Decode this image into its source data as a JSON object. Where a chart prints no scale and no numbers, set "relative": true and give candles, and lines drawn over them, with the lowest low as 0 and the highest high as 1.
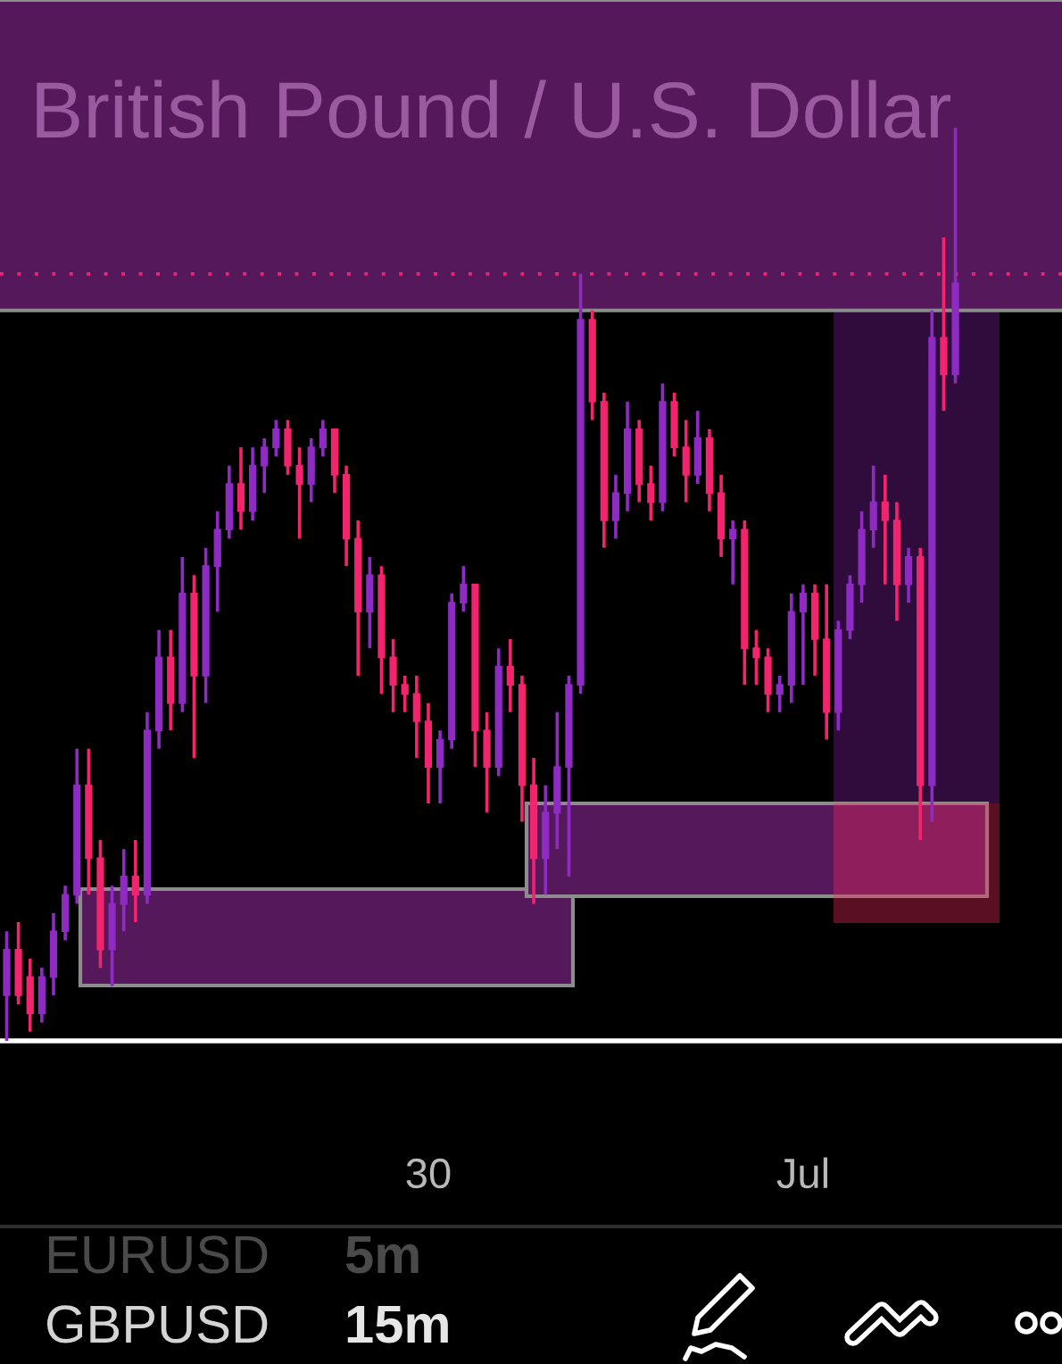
{
  "chart_data": {
    "type": "candlestick",
    "title": "British Pound / U.S. Dollar",
    "relative": true,
    "categories": [
      null,
      null,
      null,
      null,
      null,
      null,
      null,
      null,
      null,
      null,
      null,
      null,
      null,
      null,
      null,
      null,
      null,
      null,
      null,
      null,
      null,
      null,
      null,
      null,
      null,
      null,
      null,
      null,
      null,
      null,
      null,
      null,
      null,
      null,
      null,
      null,
      "30",
      null,
      null,
      null,
      null,
      null,
      null,
      null,
      null,
      null,
      null,
      null,
      null,
      null,
      null,
      null,
      null,
      null,
      null,
      null,
      null,
      null,
      null,
      null,
      null,
      null,
      null,
      null,
      null,
      null,
      null,
      null,
      "Jul",
      null,
      null,
      null,
      null,
      null,
      null,
      null,
      null,
      null,
      null,
      null,
      null,
      null
    ],
    "ohlc": [
      [
        0.05,
        0.12,
        0,
        0.1
      ],
      [
        0.1,
        0.13,
        0.04,
        0.05
      ],
      [
        0.07,
        0.09,
        0.01,
        0.03
      ],
      [
        0.03,
        0.08,
        0.02,
        0.07
      ],
      [
        0.07,
        0.14,
        0.05,
        0.12
      ],
      [
        0.12,
        0.17,
        0.11,
        0.16
      ],
      [
        0.16,
        0.32,
        0.15,
        0.28
      ],
      [
        0.28,
        0.32,
        0.16,
        0.2
      ],
      [
        0.2,
        0.22,
        0.08,
        0.1
      ],
      [
        0.1,
        0.17,
        0.06,
        0.15
      ],
      [
        0.15,
        0.21,
        0.12,
        0.18
      ],
      [
        0.18,
        0.22,
        0.13,
        0.16
      ],
      [
        0.16,
        0.36,
        0.15,
        0.34
      ],
      [
        0.34,
        0.45,
        0.32,
        0.42
      ],
      [
        0.42,
        0.45,
        0.34,
        0.37
      ],
      [
        0.37,
        0.53,
        0.36,
        0.49
      ],
      [
        0.49,
        0.51,
        0.31,
        0.4
      ],
      [
        0.4,
        0.54,
        0.37,
        0.52
      ],
      [
        0.52,
        0.58,
        0.47,
        0.56
      ],
      [
        0.56,
        0.63,
        0.55,
        0.61
      ],
      [
        0.61,
        0.65,
        0.56,
        0.58
      ],
      [
        0.58,
        0.65,
        0.57,
        0.63
      ],
      [
        0.63,
        0.66,
        0.6,
        0.65
      ],
      [
        0.65,
        0.68,
        0.64,
        0.67
      ],
      [
        0.67,
        0.68,
        0.62,
        0.63
      ],
      [
        0.63,
        0.65,
        0.55,
        0.61
      ],
      [
        0.61,
        0.66,
        0.59,
        0.65
      ],
      [
        0.65,
        0.68,
        0.64,
        0.67
      ],
      [
        0.67,
        0.67,
        0.6,
        0.62
      ],
      [
        0.62,
        0.63,
        0.52,
        0.55
      ],
      [
        0.55,
        0.57,
        0.4,
        0.47
      ],
      [
        0.47,
        0.53,
        0.43,
        0.51
      ],
      [
        0.51,
        0.52,
        0.38,
        0.42
      ],
      [
        0.42,
        0.44,
        0.36,
        0.39
      ],
      [
        0.39,
        0.4,
        0.36,
        0.38
      ],
      [
        0.38,
        0.4,
        0.31,
        0.35
      ],
      [
        0.35,
        0.37,
        0.26,
        0.3
      ],
      [
        0.3,
        0.34,
        0.26,
        0.33
      ],
      [
        0.33,
        0.49,
        0.32,
        0.48
      ],
      [
        0.48,
        0.52,
        0.47,
        0.5
      ],
      [
        0.5,
        0.5,
        0.3,
        0.34
      ],
      [
        0.34,
        0.36,
        0.25,
        0.3
      ],
      [
        0.3,
        0.43,
        0.29,
        0.41
      ],
      [
        0.41,
        0.44,
        0.36,
        0.39
      ],
      [
        0.39,
        0.4,
        0.24,
        0.28
      ],
      [
        0.28,
        0.31,
        0.15,
        0.2
      ],
      [
        0.2,
        0.28,
        0.16,
        0.25
      ],
      [
        0.25,
        0.36,
        0.21,
        0.3
      ],
      [
        0.3,
        0.4,
        0.18,
        0.39
      ],
      [
        0.39,
        0.84,
        0.38,
        0.79
      ],
      [
        0.79,
        0.8,
        0.68,
        0.7
      ],
      [
        0.7,
        0.71,
        0.54,
        0.57
      ],
      [
        0.57,
        0.62,
        0.55,
        0.6
      ],
      [
        0.6,
        0.7,
        0.58,
        0.67
      ],
      [
        0.67,
        0.68,
        0.59,
        0.61
      ],
      [
        0.61,
        0.63,
        0.57,
        0.59
      ],
      [
        0.59,
        0.72,
        0.58,
        0.7
      ],
      [
        0.7,
        0.71,
        0.64,
        0.65
      ],
      [
        0.65,
        0.68,
        0.59,
        0.62
      ],
      [
        0.62,
        0.69,
        0.61,
        0.66
      ],
      [
        0.66,
        0.67,
        0.58,
        0.6
      ],
      [
        0.6,
        0.62,
        0.53,
        0.55
      ],
      [
        0.55,
        0.57,
        0.5,
        0.56
      ],
      [
        0.56,
        0.57,
        0.39,
        0.43
      ],
      [
        0.43,
        0.45,
        0.39,
        0.42
      ],
      [
        0.42,
        0.43,
        0.36,
        0.38
      ],
      [
        0.38,
        0.4,
        0.36,
        0.39
      ],
      [
        0.39,
        0.49,
        0.37,
        0.47
      ],
      [
        0.47,
        0.5,
        0.39,
        0.49
      ],
      [
        0.49,
        0.5,
        0.4,
        0.44
      ],
      [
        0.44,
        0.5,
        0.33,
        0.36
      ],
      [
        0.36,
        0.46,
        0.34,
        0.45
      ],
      [
        0.45,
        0.51,
        0.44,
        0.5
      ],
      [
        0.5,
        0.58,
        0.48,
        0.56
      ],
      [
        0.56,
        0.63,
        0.54,
        0.59
      ],
      [
        0.59,
        0.62,
        0.5,
        0.57
      ],
      [
        0.57,
        0.59,
        0.46,
        0.5
      ],
      [
        0.5,
        0.54,
        0.48,
        0.53
      ],
      [
        0.53,
        0.54,
        0.22,
        0.28
      ],
      [
        0.28,
        0.8,
        0.24,
        0.77
      ],
      [
        0.77,
        0.88,
        0.69,
        0.73
      ],
      [
        0.73,
        1.0,
        0.72,
        0.83
      ]
    ],
    "colors": [
      "#8e2bc2",
      "#f2246e",
      "#f2246e",
      "#8e2bc2",
      "#8e2bc2",
      "#8e2bc2",
      "#8e2bc2",
      "#f2246e",
      "#f2246e",
      "#8e2bc2",
      "#8e2bc2",
      "#f2246e",
      "#8e2bc2",
      "#8e2bc2",
      "#f2246e",
      "#8e2bc2",
      "#f2246e",
      "#8e2bc2",
      "#8e2bc2",
      "#8e2bc2",
      "#f2246e",
      "#8e2bc2",
      "#8e2bc2",
      "#8e2bc2",
      "#f2246e",
      "#f2246e",
      "#8e2bc2",
      "#8e2bc2",
      "#f2246e",
      "#f2246e",
      "#f2246e",
      "#8e2bc2",
      "#f2246e",
      "#f2246e",
      "#f2246e",
      "#f2246e",
      "#f2246e",
      "#8e2bc2",
      "#8e2bc2",
      "#8e2bc2",
      "#f2246e",
      "#f2246e",
      "#8e2bc2",
      "#f2246e",
      "#f2246e",
      "#f2246e",
      "#8e2bc2",
      "#8e2bc2",
      "#8e2bc2",
      "#8e2bc2",
      "#f2246e",
      "#f2246e",
      "#8e2bc2",
      "#8e2bc2",
      "#f2246e",
      "#f2246e",
      "#8e2bc2",
      "#f2246e",
      "#f2246e",
      "#8e2bc2",
      "#f2246e",
      "#f2246e",
      "#8e2bc2",
      "#f2246e",
      "#f2246e",
      "#f2246e",
      "#8e2bc2",
      "#8e2bc2",
      "#8e2bc2",
      "#f2246e",
      "#f2246e",
      "#8e2bc2",
      "#8e2bc2",
      "#8e2bc2",
      "#8e2bc2",
      "#f2246e",
      "#f2246e",
      "#8e2bc2",
      "#f2246e",
      "#8e2bc2",
      "#f2246e",
      "#8e2bc2"
    ],
    "bands": [
      {
        "axis": "y",
        "from": 0.8,
        "to": 1.14,
        "color": "#54185b"
      }
    ],
    "ref_lines": [
      {
        "axis": "y",
        "value": 0.84,
        "color": "#f2246e",
        "line_style": "dotted"
      }
    ],
    "annotations": [
      "EURUSD",
      "5m",
      "GBPUSD",
      "15m"
    ]
  }
}
